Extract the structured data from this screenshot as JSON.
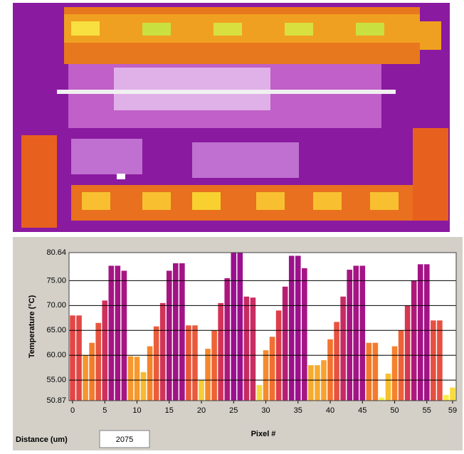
{
  "chart_data": {
    "type": "bar",
    "x_label": "Pixel #",
    "y_label": "Temperature (°C)",
    "x": [
      0,
      1,
      2,
      3,
      4,
      5,
      6,
      7,
      8,
      9,
      10,
      11,
      12,
      13,
      14,
      15,
      16,
      17,
      18,
      19,
      20,
      21,
      22,
      23,
      24,
      25,
      26,
      27,
      28,
      29,
      30,
      31,
      32,
      33,
      34,
      35,
      36,
      37,
      38,
      39,
      40,
      41,
      42,
      43,
      44,
      45,
      46,
      47,
      48,
      49,
      50,
      51,
      52,
      53,
      54,
      55,
      56,
      57,
      58,
      59
    ],
    "values": [
      68,
      68,
      60,
      62.5,
      66.5,
      71,
      78,
      78,
      77,
      59.8,
      59.7,
      56.6,
      61.8,
      65.8,
      70.5,
      77,
      78.5,
      78.5,
      66,
      66,
      55,
      61.3,
      65,
      70.5,
      75.5,
      80.6,
      80.6,
      71.8,
      71.6,
      54,
      61,
      63.7,
      69,
      73.8,
      80,
      80,
      77.5,
      58,
      58,
      59,
      63.2,
      66.7,
      71.8,
      77.2,
      78,
      78,
      62.5,
      62.5,
      51.5,
      56.3,
      61.8,
      65,
      70,
      75,
      78.3,
      78.3,
      67,
      67,
      52,
      53.5
    ],
    "colormap": [
      "#f8f84a",
      "#f8b830",
      "#f4782c",
      "#e0404a",
      "#b0187a",
      "#9a108e"
    ],
    "xlim": [
      0,
      59
    ],
    "xticks": [
      0,
      5,
      10,
      15,
      20,
      25,
      30,
      35,
      40,
      45,
      50,
      55,
      59
    ],
    "ylim": [
      50.87,
      80.64
    ],
    "yticks": [
      {
        "value": 50.87,
        "label": "50.87"
      },
      {
        "value": 55,
        "label": "55.00"
      },
      {
        "value": 60,
        "label": "60.00"
      },
      {
        "value": 65,
        "label": "65.00"
      },
      {
        "value": 70,
        "label": "70.00"
      },
      {
        "value": 75,
        "label": "75.00"
      },
      80.64
    ],
    "grid": true
  },
  "distance": {
    "label": "Distance (um)",
    "value": "2075"
  }
}
